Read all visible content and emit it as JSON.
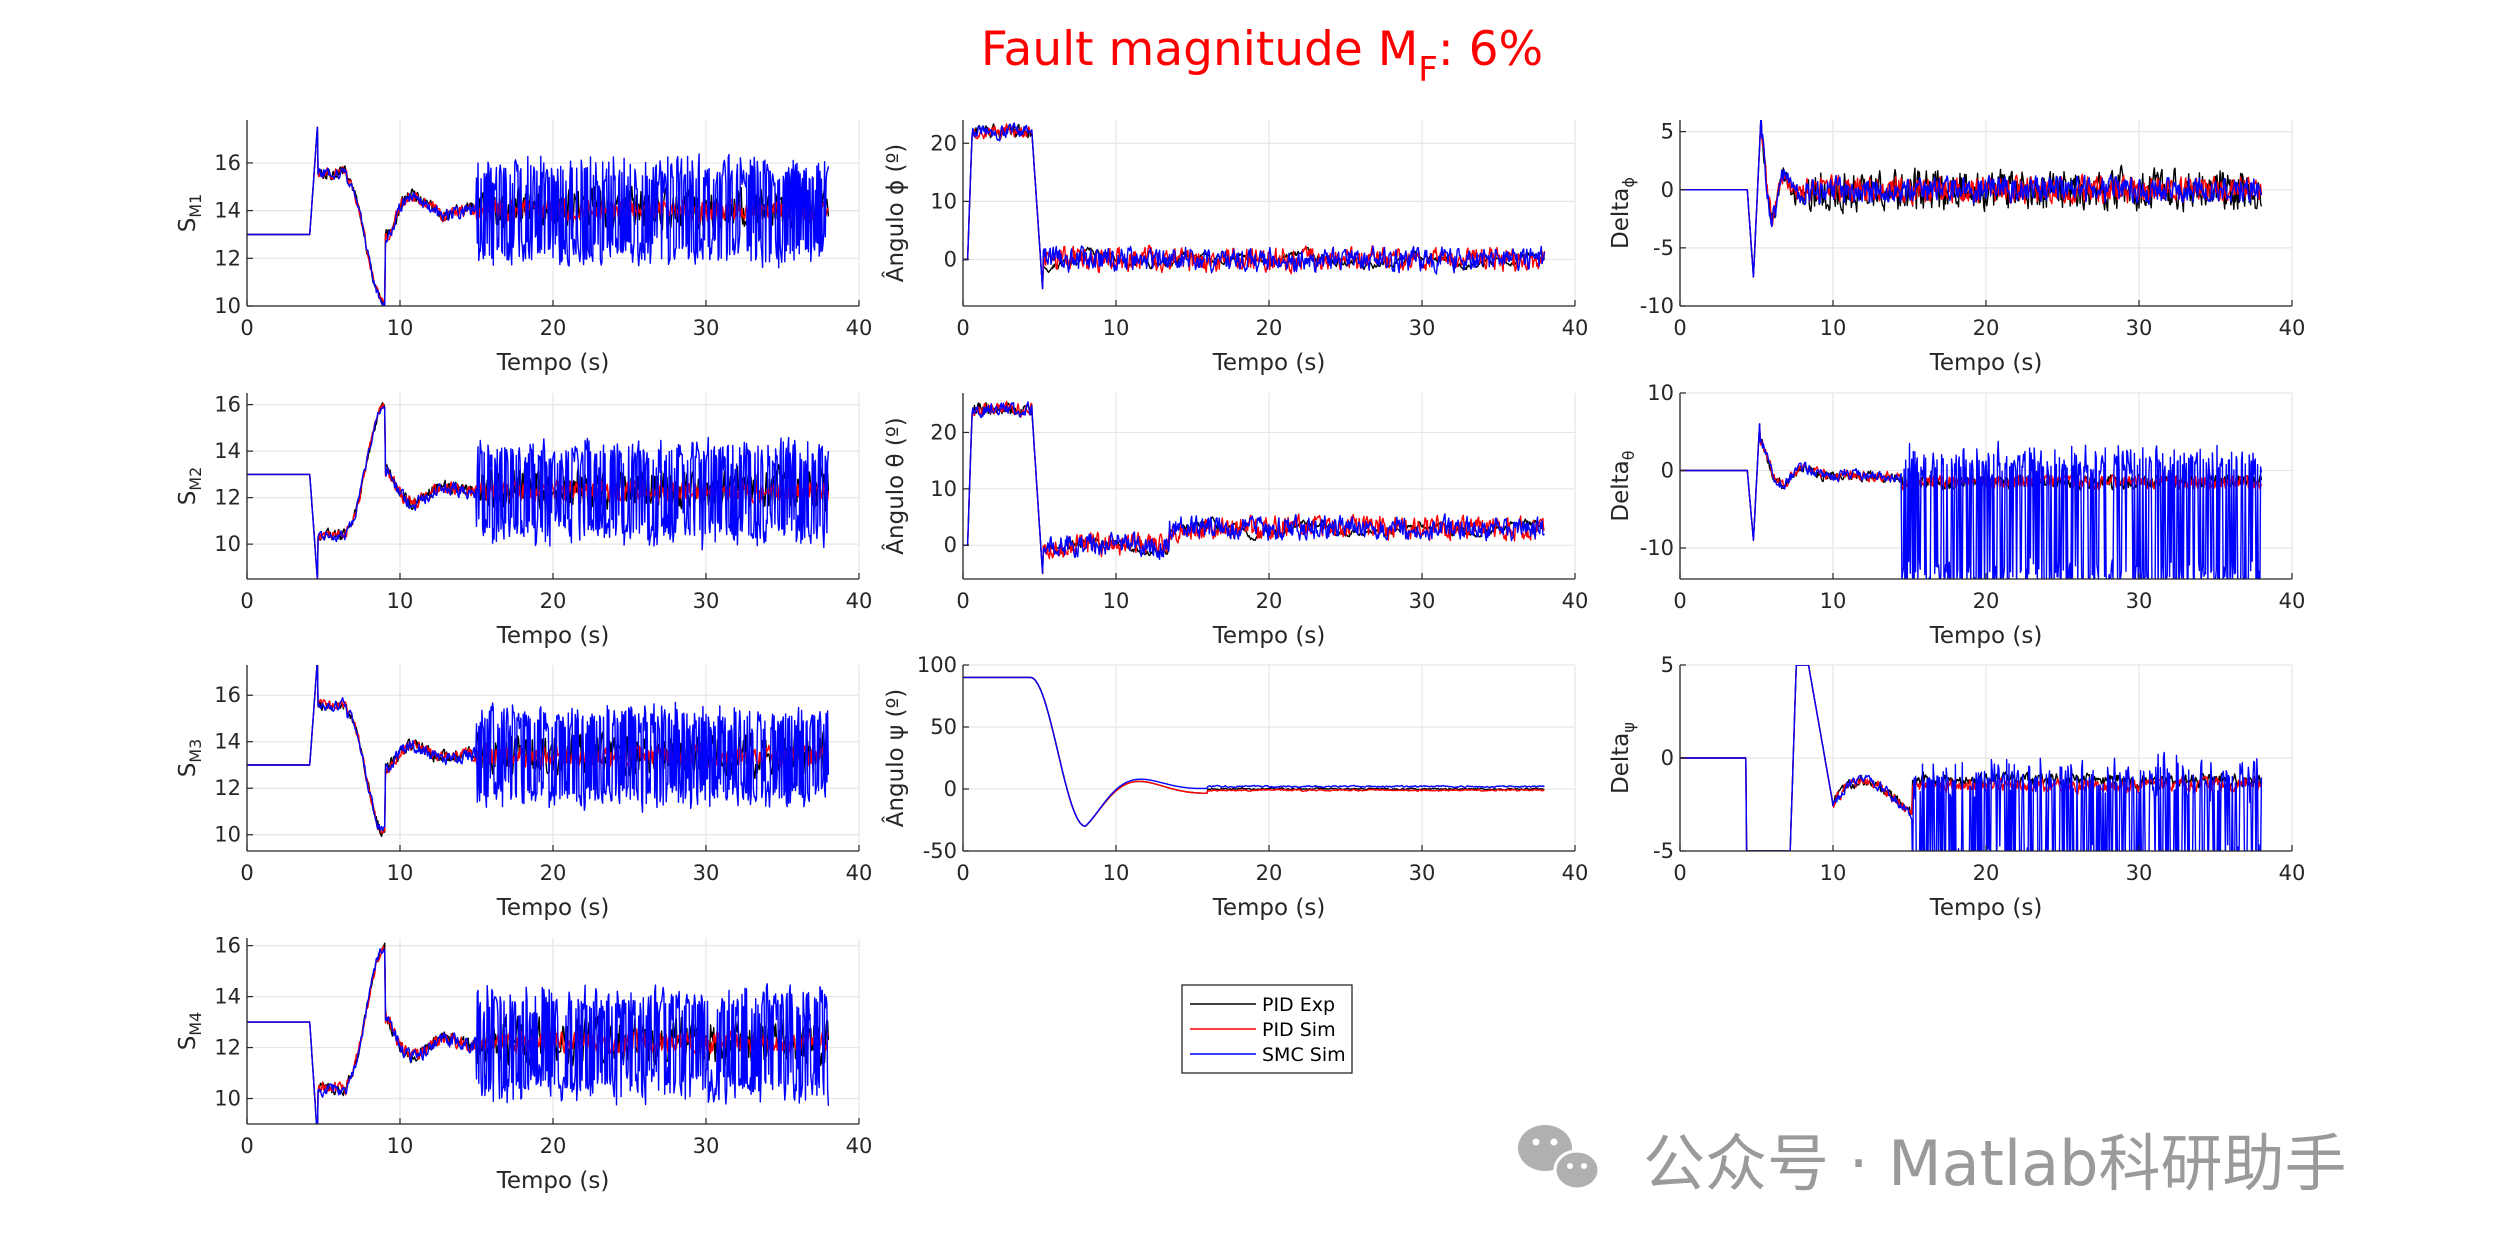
{
  "title": {
    "main": "Fault magnitude M",
    "sub": "F",
    "tail": ": 6%",
    "color": "#ff0000"
  },
  "colors": {
    "PID Exp": "#000000",
    "PID Sim": "#ff0000",
    "SMC Sim": "#0000ff",
    "grid": "#e6e6e6",
    "axis": "#262626"
  },
  "legend": {
    "entries": [
      "PID Exp",
      "PID Sim",
      "SMC Sim"
    ]
  },
  "watermark": {
    "text": "公众号 · Matlab科研助手",
    "icon": "wechat-icon"
  },
  "chart_data": [
    {
      "id": "sm1",
      "type": "line",
      "xlabel": "Tempo (s)",
      "ylabel": "S",
      "ysub": "M1",
      "xlim": [
        0,
        40
      ],
      "ylim": [
        10,
        17.8
      ],
      "xticks": [
        0,
        10,
        20,
        30,
        40
      ],
      "yticks": [
        10,
        12,
        14,
        16
      ],
      "grid": true,
      "signal": "motor",
      "params": {
        "pre": 13,
        "dir": 1,
        "ss": 14,
        "seed": 11
      }
    },
    {
      "id": "phi",
      "type": "line",
      "xlabel": "Tempo (s)",
      "ylabel": "Ângulo ϕ (º)",
      "ysub": "",
      "xlim": [
        0,
        40
      ],
      "ylim": [
        -8,
        24
      ],
      "xticks": [
        0,
        10,
        20,
        30,
        40
      ],
      "yticks": [
        0,
        10,
        20
      ],
      "grid": true,
      "signal": "angle",
      "params": {
        "pre": 22,
        "seed": 21
      }
    },
    {
      "id": "dphi",
      "type": "line",
      "xlabel": "Tempo (s)",
      "ylabel": "Delta",
      "ysub": "ϕ",
      "xlim": [
        0,
        40
      ],
      "ylim": [
        -10,
        6
      ],
      "xticks": [
        0,
        10,
        20,
        30,
        40
      ],
      "yticks": [
        -10,
        -5,
        0,
        5
      ],
      "grid": true,
      "signal": "delta_phi",
      "params": {
        "seed": 31
      }
    },
    {
      "id": "sm2",
      "type": "line",
      "xlabel": "Tempo (s)",
      "ylabel": "S",
      "ysub": "M2",
      "xlim": [
        0,
        40
      ],
      "ylim": [
        8.5,
        16.5
      ],
      "xticks": [
        0,
        10,
        20,
        30,
        40
      ],
      "yticks": [
        10,
        12,
        14,
        16
      ],
      "grid": true,
      "signal": "motor",
      "params": {
        "pre": 13,
        "dir": -1,
        "ss": 12.3,
        "seed": 12
      }
    },
    {
      "id": "theta",
      "type": "line",
      "xlabel": "Tempo (s)",
      "ylabel": "Ângulo θ (º)",
      "ysub": "",
      "xlim": [
        0,
        40
      ],
      "ylim": [
        -6,
        27
      ],
      "xticks": [
        0,
        10,
        20,
        30,
        40
      ],
      "yticks": [
        0,
        10,
        20
      ],
      "grid": true,
      "signal": "angle",
      "params": {
        "pre": 24,
        "seed": 22
      }
    },
    {
      "id": "dtheta",
      "type": "line",
      "xlabel": "Tempo (s)",
      "ylabel": "Delta",
      "ysub": "θ",
      "xlim": [
        0,
        40
      ],
      "ylim": [
        -14,
        10
      ],
      "xticks": [
        0,
        10,
        20,
        30,
        40
      ],
      "yticks": [
        -10,
        0,
        10
      ],
      "grid": true,
      "signal": "delta_theta",
      "params": {
        "seed": 32
      }
    },
    {
      "id": "sm3",
      "type": "line",
      "xlabel": "Tempo (s)",
      "ylabel": "S",
      "ysub": "M3",
      "xlim": [
        0,
        40
      ],
      "ylim": [
        9.3,
        17.3
      ],
      "xticks": [
        0,
        10,
        20,
        30,
        40
      ],
      "yticks": [
        10,
        12,
        14,
        16
      ],
      "grid": true,
      "signal": "motor",
      "params": {
        "pre": 13,
        "dir": 1,
        "ss": 13.4,
        "seed": 13
      }
    },
    {
      "id": "psi",
      "type": "line",
      "xlabel": "Tempo (s)",
      "ylabel": "Ângulo ψ (º)",
      "ysub": "",
      "xlim": [
        0,
        40
      ],
      "ylim": [
        -50,
        100
      ],
      "xticks": [
        0,
        10,
        20,
        30,
        40
      ],
      "yticks": [
        -50,
        0,
        50,
        100
      ],
      "grid": true,
      "signal": "yaw",
      "params": {
        "seed": 23
      }
    },
    {
      "id": "dpsi",
      "type": "line",
      "xlabel": "Tempo (s)",
      "ylabel": "Delta",
      "ysub": "ψ",
      "xlim": [
        0,
        40
      ],
      "ylim": [
        -5,
        5
      ],
      "xticks": [
        0,
        10,
        20,
        30,
        40
      ],
      "yticks": [
        -5,
        0,
        5
      ],
      "grid": true,
      "signal": "delta_psi",
      "params": {
        "seed": 33
      }
    },
    {
      "id": "sm4",
      "type": "line",
      "xlabel": "Tempo (s)",
      "ylabel": "S",
      "ysub": "M4",
      "xlim": [
        0,
        40
      ],
      "ylim": [
        9,
        16.3
      ],
      "xticks": [
        0,
        10,
        20,
        30,
        40
      ],
      "yticks": [
        10,
        12,
        14,
        16
      ],
      "grid": true,
      "signal": "motor",
      "params": {
        "pre": 13,
        "dir": -1,
        "ss": 12.2,
        "seed": 14
      }
    }
  ]
}
